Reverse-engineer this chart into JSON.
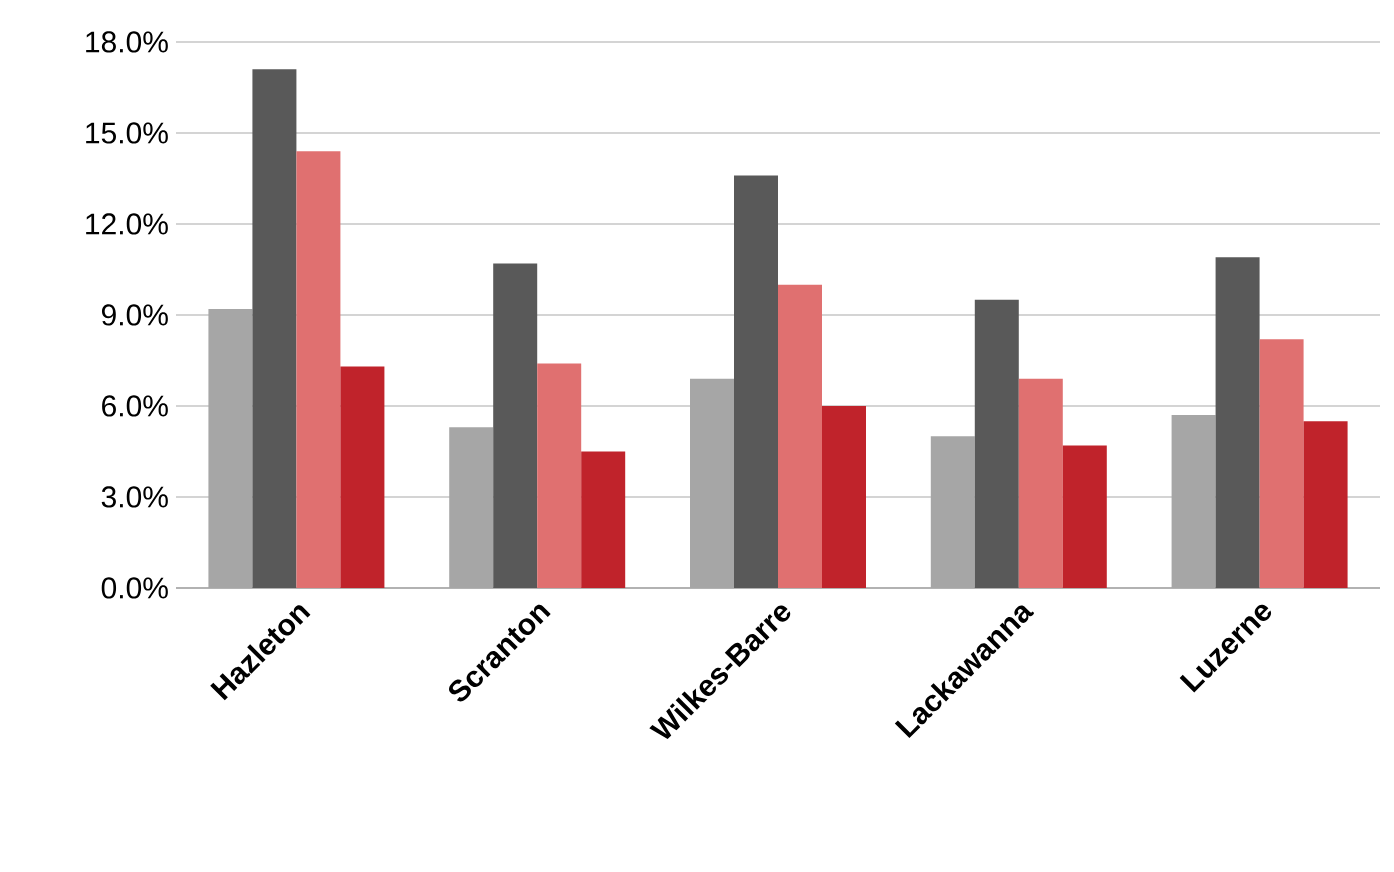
{
  "chart_data": {
    "type": "bar",
    "categories": [
      "Hazleton",
      "Scranton",
      "Wilkes-Barre",
      "Lackawanna",
      "Luzerne"
    ],
    "series": [
      {
        "color": "#a6a6a6",
        "values": [
          9.2,
          5.3,
          6.9,
          5.0,
          5.7
        ]
      },
      {
        "color": "#595959",
        "values": [
          17.1,
          10.7,
          13.6,
          9.5,
          10.9
        ]
      },
      {
        "color": "#e07070",
        "values": [
          14.4,
          7.4,
          10.0,
          6.9,
          8.2
        ]
      },
      {
        "color": "#c0232b",
        "values": [
          7.3,
          4.5,
          6.0,
          4.7,
          5.5
        ]
      }
    ],
    "ylim": [
      0,
      18
    ],
    "yticks": [
      {
        "value": 0,
        "label": "0.0%"
      },
      {
        "value": 3,
        "label": "3.0%"
      },
      {
        "value": 6,
        "label": "6.0%"
      },
      {
        "value": 9,
        "label": "9.0%"
      },
      {
        "value": 12,
        "label": "12.0%"
      },
      {
        "value": 15,
        "label": "15.0%"
      },
      {
        "value": 18,
        "label": "18.0%"
      }
    ],
    "grid": "y"
  }
}
